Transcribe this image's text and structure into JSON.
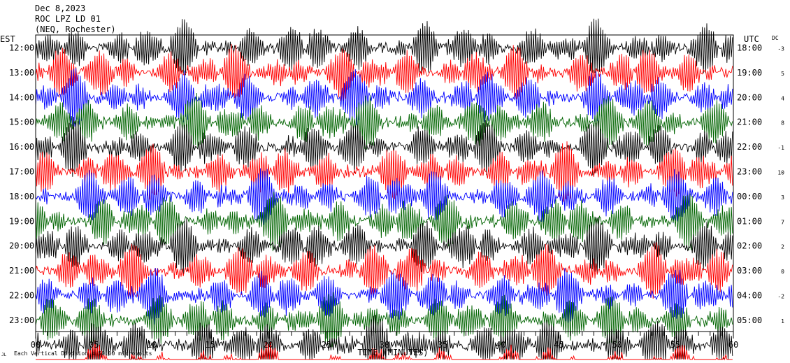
{
  "chart_data": {
    "type": "line",
    "title_lines": [
      "Dec 8,2023",
      "ROC LPZ LD 01",
      "(NEQ, Rochester)"
    ],
    "left_timezone": "EST",
    "right_timezone": "UTC",
    "dc_header": "DC",
    "xlabel": "TIME (MINUTES)",
    "x_ticks": [
      "00",
      "05",
      "10",
      "15",
      "20",
      "25",
      "30",
      "35",
      "40",
      "45",
      "50",
      "55",
      "60"
    ],
    "xlim": [
      0,
      60
    ],
    "rows": [
      {
        "est": "12:00",
        "utc": "18:00",
        "dc": "-3",
        "color": "#000000"
      },
      {
        "est": "13:00",
        "utc": "19:00",
        "dc": "5",
        "color": "#ff0000"
      },
      {
        "est": "14:00",
        "utc": "20:00",
        "dc": "4",
        "color": "#0000ff"
      },
      {
        "est": "15:00",
        "utc": "21:00",
        "dc": "8",
        "color": "#006400"
      },
      {
        "est": "16:00",
        "utc": "22:00",
        "dc": "-1",
        "color": "#000000"
      },
      {
        "est": "17:00",
        "utc": "23:00",
        "dc": "10",
        "color": "#ff0000"
      },
      {
        "est": "18:00",
        "utc": "00:00",
        "dc": "3",
        "color": "#0000ff"
      },
      {
        "est": "19:00",
        "utc": "01:00",
        "dc": "7",
        "color": "#006400"
      },
      {
        "est": "20:00",
        "utc": "02:00",
        "dc": "2",
        "color": "#000000"
      },
      {
        "est": "21:00",
        "utc": "03:00",
        "dc": "0",
        "color": "#ff0000"
      },
      {
        "est": "22:00",
        "utc": "04:00",
        "dc": "-2",
        "color": "#0000ff"
      },
      {
        "est": "23:00",
        "utc": "05:00",
        "dc": "1",
        "color": "#006400"
      }
    ],
    "extra_traces": [
      {
        "color": "#000000"
      },
      {
        "color": "#ff0000"
      },
      {
        "color": "#0000ff"
      },
      {
        "color": "#006400"
      },
      {
        "color": "#000000"
      },
      {
        "color": "#ff0000"
      },
      {
        "color": "#0000ff"
      },
      {
        "color": "#006400"
      },
      {
        "color": "#000000"
      },
      {
        "color": "#ff0000"
      },
      {
        "color": "#0000ff"
      },
      {
        "color": "#006400"
      }
    ],
    "footer_logo": "JL",
    "footer_text": "Each Vertical Division = 50.00 microvolts"
  }
}
